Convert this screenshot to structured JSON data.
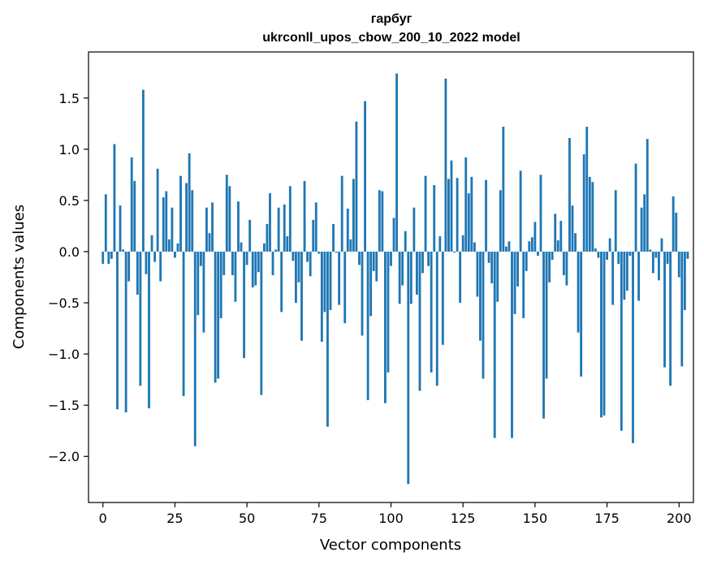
{
  "chart_data": {
    "type": "bar",
    "title": "гарбуг",
    "subtitle": "ukrconll_upos_cbow_200_10_2022 model",
    "xlabel": "Vector components",
    "ylabel": "Components values",
    "xlim": [
      -5,
      205
    ],
    "ylim": [
      -2.45,
      1.95
    ],
    "xticks": [
      0,
      25,
      50,
      75,
      100,
      125,
      150,
      175,
      200
    ],
    "xtick_labels": [
      "0",
      "25",
      "50",
      "75",
      "100",
      "125",
      "150",
      "175",
      "200"
    ],
    "yticks": [
      -2.0,
      -1.5,
      -1.0,
      -0.5,
      0.0,
      0.5,
      1.0,
      1.5
    ],
    "ytick_labels": [
      "−2.0",
      "−1.5",
      "−1.0",
      "−0.5",
      "0.0",
      "0.5",
      "1.0",
      "1.5"
    ],
    "grid": false,
    "legend": "none",
    "bar_color": "#1f77b4",
    "values": [
      -0.12,
      0.56,
      -0.12,
      -0.07,
      1.05,
      -1.54,
      0.45,
      0.02,
      -1.57,
      -0.29,
      0.92,
      0.69,
      -0.42,
      -1.31,
      1.58,
      -0.22,
      -1.53,
      0.16,
      -0.1,
      0.81,
      -0.29,
      0.53,
      0.59,
      0.12,
      0.43,
      -0.06,
      0.08,
      0.74,
      -1.41,
      0.67,
      0.96,
      0.6,
      -1.9,
      -0.62,
      -0.14,
      -0.79,
      0.43,
      0.18,
      0.48,
      -1.28,
      -1.24,
      -0.65,
      -0.23,
      0.75,
      0.64,
      -0.23,
      -0.49,
      0.49,
      0.09,
      -1.04,
      -0.13,
      0.31,
      -0.35,
      -0.33,
      -0.2,
      -1.4,
      0.08,
      0.27,
      0.57,
      -0.23,
      0.02,
      0.43,
      -0.59,
      0.46,
      0.15,
      0.64,
      -0.09,
      -0.5,
      -0.3,
      -0.87,
      0.69,
      -0.1,
      -0.24,
      0.31,
      0.48,
      -0.02,
      -0.88,
      -0.59,
      -1.71,
      -0.57,
      0.27,
      -0.01,
      -0.52,
      0.74,
      -0.7,
      0.42,
      0.12,
      0.71,
      1.27,
      -0.13,
      -0.82,
      1.47,
      -1.45,
      -0.63,
      -0.19,
      -0.29,
      0.6,
      0.59,
      -1.48,
      -1.18,
      -0.14,
      0.33,
      1.74,
      -0.51,
      -0.33,
      0.2,
      -2.27,
      -0.51,
      0.43,
      -0.42,
      -1.36,
      -0.21,
      0.74,
      -0.14,
      -1.18,
      0.65,
      -1.31,
      0.15,
      -0.91,
      1.69,
      0.71,
      0.89,
      -0.01,
      0.72,
      -0.5,
      0.16,
      0.92,
      0.57,
      0.73,
      0.09,
      -0.44,
      -0.87,
      -1.24,
      0.7,
      -0.11,
      -0.31,
      -1.82,
      -0.49,
      0.6,
      1.22,
      0.05,
      0.1,
      -1.82,
      -0.61,
      -0.34,
      0.79,
      -0.65,
      -0.19,
      0.1,
      0.14,
      0.29,
      -0.04,
      0.75,
      -1.63,
      -1.24,
      -0.3,
      -0.08,
      0.37,
      0.11,
      0.3,
      -0.23,
      -0.33,
      1.11,
      0.45,
      0.18,
      -0.79,
      -1.22,
      0.95,
      1.22,
      0.73,
      0.68,
      0.03,
      -0.06,
      -1.62,
      -1.6,
      -0.08,
      0.13,
      -0.52,
      0.6,
      -0.12,
      -1.75,
      -0.47,
      -0.38,
      -0.04,
      -1.87,
      0.86,
      -0.48,
      0.43,
      0.56,
      1.1,
      0.02,
      -0.21,
      -0.06,
      -0.28,
      0.13,
      -1.13,
      -0.12,
      -1.31,
      0.54,
      0.38,
      -0.25,
      -1.12,
      -0.57,
      -0.07
    ]
  }
}
